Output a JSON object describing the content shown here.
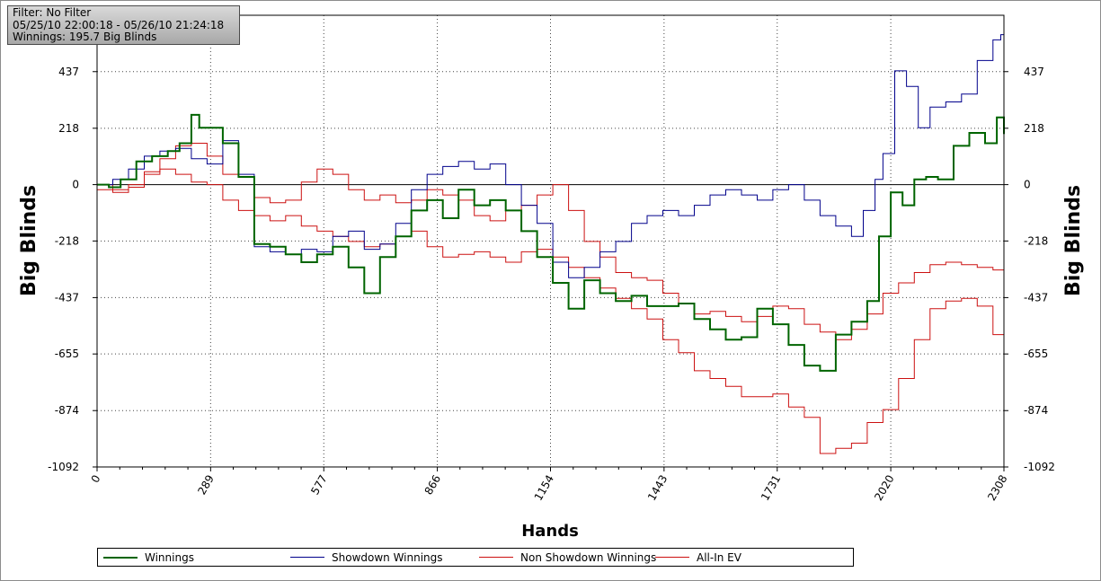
{
  "info": {
    "filter": "Filter: No Filter",
    "date_range": "05/25/10 22:00:18 - 05/26/10 21:24:18",
    "winnings": "Winnings: 195.7 Big Blinds"
  },
  "legend": {
    "items": [
      {
        "label": "Winnings",
        "color": "#006400",
        "width": 2
      },
      {
        "label": "Showdown Winnings",
        "color": "#00008b",
        "width": 1
      },
      {
        "label": "Non Showdown Winnings",
        "color": "#cc1111",
        "width": 1
      },
      {
        "label": "All-In EV",
        "color": "#cc1111",
        "width": 1
      }
    ]
  },
  "chart_data": {
    "type": "line",
    "title": "",
    "xlabel": "Hands",
    "ylabel": "Big Blinds",
    "y2label": "Big Blinds",
    "xlim": [
      0,
      2308
    ],
    "ylim": [
      -1092,
      655
    ],
    "x_ticks": [
      0,
      289,
      577,
      866,
      1154,
      1443,
      1731,
      2020,
      2308
    ],
    "y_ticks": [
      437,
      218,
      0,
      -218,
      -437,
      -655,
      -874,
      -1092
    ],
    "grid": true,
    "legend_position": "bottom",
    "series": [
      {
        "name": "Winnings",
        "color": "#006400",
        "x": [
          0,
          30,
          60,
          100,
          140,
          180,
          210,
          240,
          260,
          290,
          320,
          360,
          400,
          440,
          480,
          520,
          560,
          600,
          640,
          680,
          720,
          760,
          800,
          840,
          880,
          920,
          960,
          1000,
          1040,
          1080,
          1120,
          1160,
          1200,
          1240,
          1280,
          1320,
          1360,
          1400,
          1440,
          1480,
          1520,
          1560,
          1600,
          1640,
          1680,
          1720,
          1760,
          1800,
          1840,
          1880,
          1920,
          1960,
          1990,
          2020,
          2050,
          2080,
          2110,
          2140,
          2180,
          2220,
          2260,
          2290,
          2308
        ],
        "y": [
          0,
          -10,
          20,
          90,
          110,
          130,
          160,
          270,
          220,
          220,
          160,
          30,
          -230,
          -240,
          -270,
          -300,
          -270,
          -240,
          -320,
          -420,
          -280,
          -200,
          -100,
          -60,
          -130,
          -20,
          -80,
          -60,
          -100,
          -180,
          -280,
          -380,
          -480,
          -370,
          -420,
          -450,
          -430,
          -470,
          -470,
          -460,
          -520,
          -560,
          -600,
          -590,
          -480,
          -540,
          -620,
          -700,
          -720,
          -580,
          -530,
          -450,
          -200,
          -30,
          -80,
          20,
          30,
          20,
          150,
          200,
          160,
          260,
          195.7
        ]
      },
      {
        "name": "Showdown Winnings",
        "color": "#00008b",
        "x": [
          0,
          40,
          80,
          120,
          160,
          200,
          240,
          280,
          320,
          360,
          400,
          440,
          480,
          520,
          560,
          600,
          640,
          680,
          720,
          760,
          800,
          840,
          880,
          920,
          960,
          1000,
          1040,
          1080,
          1120,
          1160,
          1200,
          1240,
          1280,
          1320,
          1360,
          1400,
          1440,
          1480,
          1520,
          1560,
          1600,
          1640,
          1680,
          1720,
          1760,
          1800,
          1840,
          1880,
          1920,
          1950,
          1980,
          2000,
          2030,
          2060,
          2090,
          2120,
          2160,
          2200,
          2240,
          2280,
          2300,
          2308
        ],
        "y": [
          0,
          20,
          60,
          110,
          130,
          140,
          100,
          80,
          170,
          40,
          -240,
          -260,
          -270,
          -250,
          -260,
          -200,
          -180,
          -250,
          -230,
          -150,
          -20,
          40,
          70,
          90,
          60,
          80,
          0,
          -80,
          -150,
          -300,
          -360,
          -320,
          -260,
          -220,
          -150,
          -120,
          -100,
          -120,
          -80,
          -40,
          -20,
          -40,
          -60,
          -20,
          0,
          -60,
          -120,
          -160,
          -200,
          -100,
          20,
          120,
          440,
          380,
          220,
          300,
          320,
          350,
          480,
          560,
          580,
          520
        ]
      },
      {
        "name": "Non Showdown Winnings",
        "color": "#cc1111",
        "x": [
          0,
          40,
          80,
          120,
          160,
          200,
          240,
          280,
          320,
          360,
          400,
          440,
          480,
          520,
          560,
          600,
          640,
          680,
          720,
          760,
          800,
          840,
          880,
          920,
          960,
          1000,
          1040,
          1080,
          1120,
          1160,
          1200,
          1240,
          1280,
          1320,
          1360,
          1400,
          1440,
          1480,
          1520,
          1560,
          1600,
          1640,
          1680,
          1720,
          1760,
          1800,
          1840,
          1880,
          1920,
          1960,
          2000,
          2040,
          2080,
          2120,
          2160,
          2200,
          2240,
          2280,
          2308
        ],
        "y": [
          0,
          -20,
          -10,
          40,
          100,
          150,
          160,
          110,
          40,
          30,
          -50,
          -70,
          -60,
          10,
          60,
          40,
          -20,
          -60,
          -40,
          -70,
          -60,
          -20,
          -40,
          -60,
          -120,
          -140,
          -100,
          -80,
          -40,
          0,
          -100,
          -220,
          -280,
          -340,
          -360,
          -370,
          -420,
          -460,
          -500,
          -490,
          -510,
          -530,
          -510,
          -470,
          -480,
          -540,
          -570,
          -600,
          -560,
          -500,
          -420,
          -380,
          -340,
          -310,
          -300,
          -310,
          -320,
          -330,
          -350
        ]
      },
      {
        "name": "All-In EV",
        "color": "#cc1111",
        "x": [
          0,
          40,
          80,
          120,
          160,
          200,
          240,
          280,
          320,
          360,
          400,
          440,
          480,
          520,
          560,
          600,
          640,
          680,
          720,
          760,
          800,
          840,
          880,
          920,
          960,
          1000,
          1040,
          1080,
          1120,
          1160,
          1200,
          1240,
          1280,
          1320,
          1360,
          1400,
          1440,
          1480,
          1520,
          1560,
          1600,
          1640,
          1680,
          1720,
          1760,
          1800,
          1840,
          1880,
          1920,
          1960,
          2000,
          2040,
          2080,
          2120,
          2160,
          2200,
          2240,
          2280,
          2308
        ],
        "y": [
          -20,
          -30,
          0,
          50,
          60,
          40,
          10,
          0,
          -60,
          -100,
          -120,
          -140,
          -120,
          -160,
          -180,
          -200,
          -220,
          -240,
          -230,
          -200,
          -180,
          -240,
          -280,
          -270,
          -260,
          -280,
          -300,
          -260,
          -250,
          -280,
          -320,
          -360,
          -400,
          -440,
          -480,
          -520,
          -600,
          -650,
          -720,
          -750,
          -780,
          -820,
          -820,
          -810,
          -860,
          -900,
          -1040,
          -1020,
          -1000,
          -920,
          -870,
          -750,
          -600,
          -480,
          -450,
          -440,
          -470,
          -580,
          -620
        ]
      }
    ]
  }
}
